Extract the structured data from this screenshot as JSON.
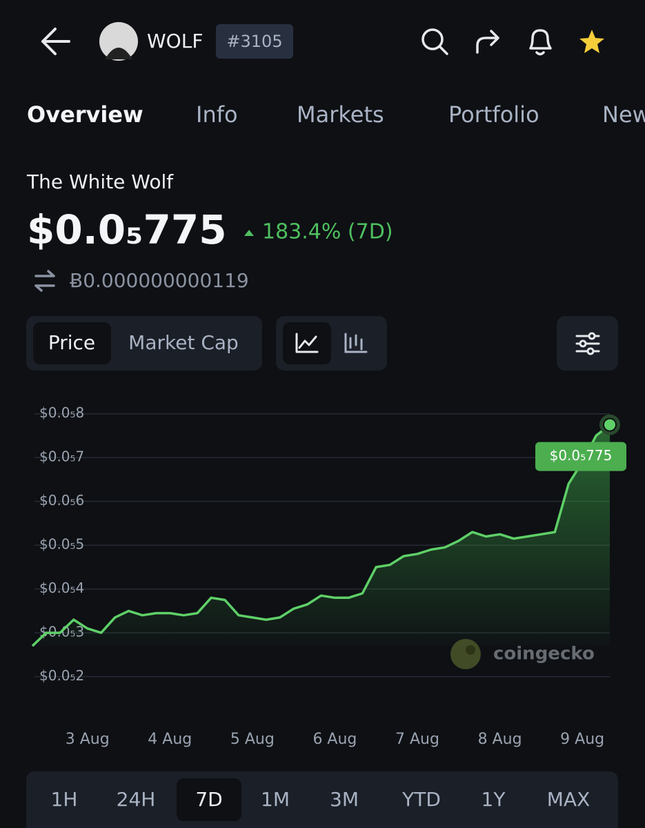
{
  "header": {
    "symbol": "WOLF",
    "rank": "#3105"
  },
  "tabs": [
    "Overview",
    "Info",
    "Markets",
    "Portfolio",
    "New"
  ],
  "coin": {
    "name": "The White Wolf",
    "price": "$0.0₅775",
    "change": "183.4% (7D)",
    "btc_price": "Ƀ0.000000000119"
  },
  "chart_toggle": [
    "Price",
    "Market Cap"
  ],
  "watermark": "coingecko",
  "time_ranges": [
    "1H",
    "24H",
    "7D",
    "1M",
    "3M",
    "YTD",
    "1Y",
    "MAX"
  ],
  "chart_data": {
    "type": "line",
    "color": "#5fd068",
    "grid": true,
    "categories": [
      null,
      null,
      null,
      null,
      "3 Aug",
      null,
      null,
      null,
      null,
      null,
      "4 Aug",
      null,
      null,
      null,
      null,
      null,
      "5 Aug",
      null,
      null,
      null,
      null,
      null,
      "6 Aug",
      null,
      null,
      null,
      null,
      null,
      "7 Aug",
      null,
      null,
      null,
      null,
      null,
      "8 Aug",
      null,
      null,
      null,
      null,
      null,
      "9 Aug",
      null,
      null
    ],
    "values": [
      2.7e-06,
      3e-06,
      3e-06,
      3.3e-06,
      3.1e-06,
      3e-06,
      3.35e-06,
      3.5e-06,
      3.4e-06,
      3.45e-06,
      3.45e-06,
      3.4e-06,
      3.45e-06,
      3.8e-06,
      3.75e-06,
      3.4e-06,
      3.35e-06,
      3.3e-06,
      3.35e-06,
      3.55e-06,
      3.65e-06,
      3.85e-06,
      3.8e-06,
      3.8e-06,
      3.9e-06,
      4.5e-06,
      4.55e-06,
      4.75e-06,
      4.8e-06,
      4.9e-06,
      4.95e-06,
      5.1e-06,
      5.3e-06,
      5.2e-06,
      5.25e-06,
      5.15e-06,
      5.2e-06,
      5.25e-06,
      5.3e-06,
      6.4e-06,
      6.9e-06,
      7.5e-06,
      7.75e-06
    ],
    "value_labels": [
      null,
      null,
      null,
      null,
      null,
      null,
      null,
      null,
      null,
      null,
      null,
      null,
      null,
      null,
      null,
      null,
      null,
      null,
      null,
      null,
      null,
      null,
      null,
      null,
      null,
      null,
      null,
      null,
      null,
      null,
      null,
      null,
      null,
      null,
      null,
      null,
      null,
      null,
      null,
      null,
      null,
      null,
      "$0.0₅775"
    ],
    "ylim": [
      1.6e-06,
      8.2e-06
    ],
    "yticks": [
      {
        "value": 8e-06,
        "label": "$0.0₅8"
      },
      {
        "value": 7e-06,
        "label": "$0.0₅7"
      },
      {
        "value": 6e-06,
        "label": "$0.0₅6"
      },
      {
        "value": 5e-06,
        "label": "$0.0₅5"
      },
      {
        "value": 4e-06,
        "label": "$0.0₅4"
      },
      {
        "value": 3e-06,
        "label": "$0.0₅3"
      },
      {
        "value": 2e-06,
        "label": "$0.0₅2"
      }
    ]
  }
}
